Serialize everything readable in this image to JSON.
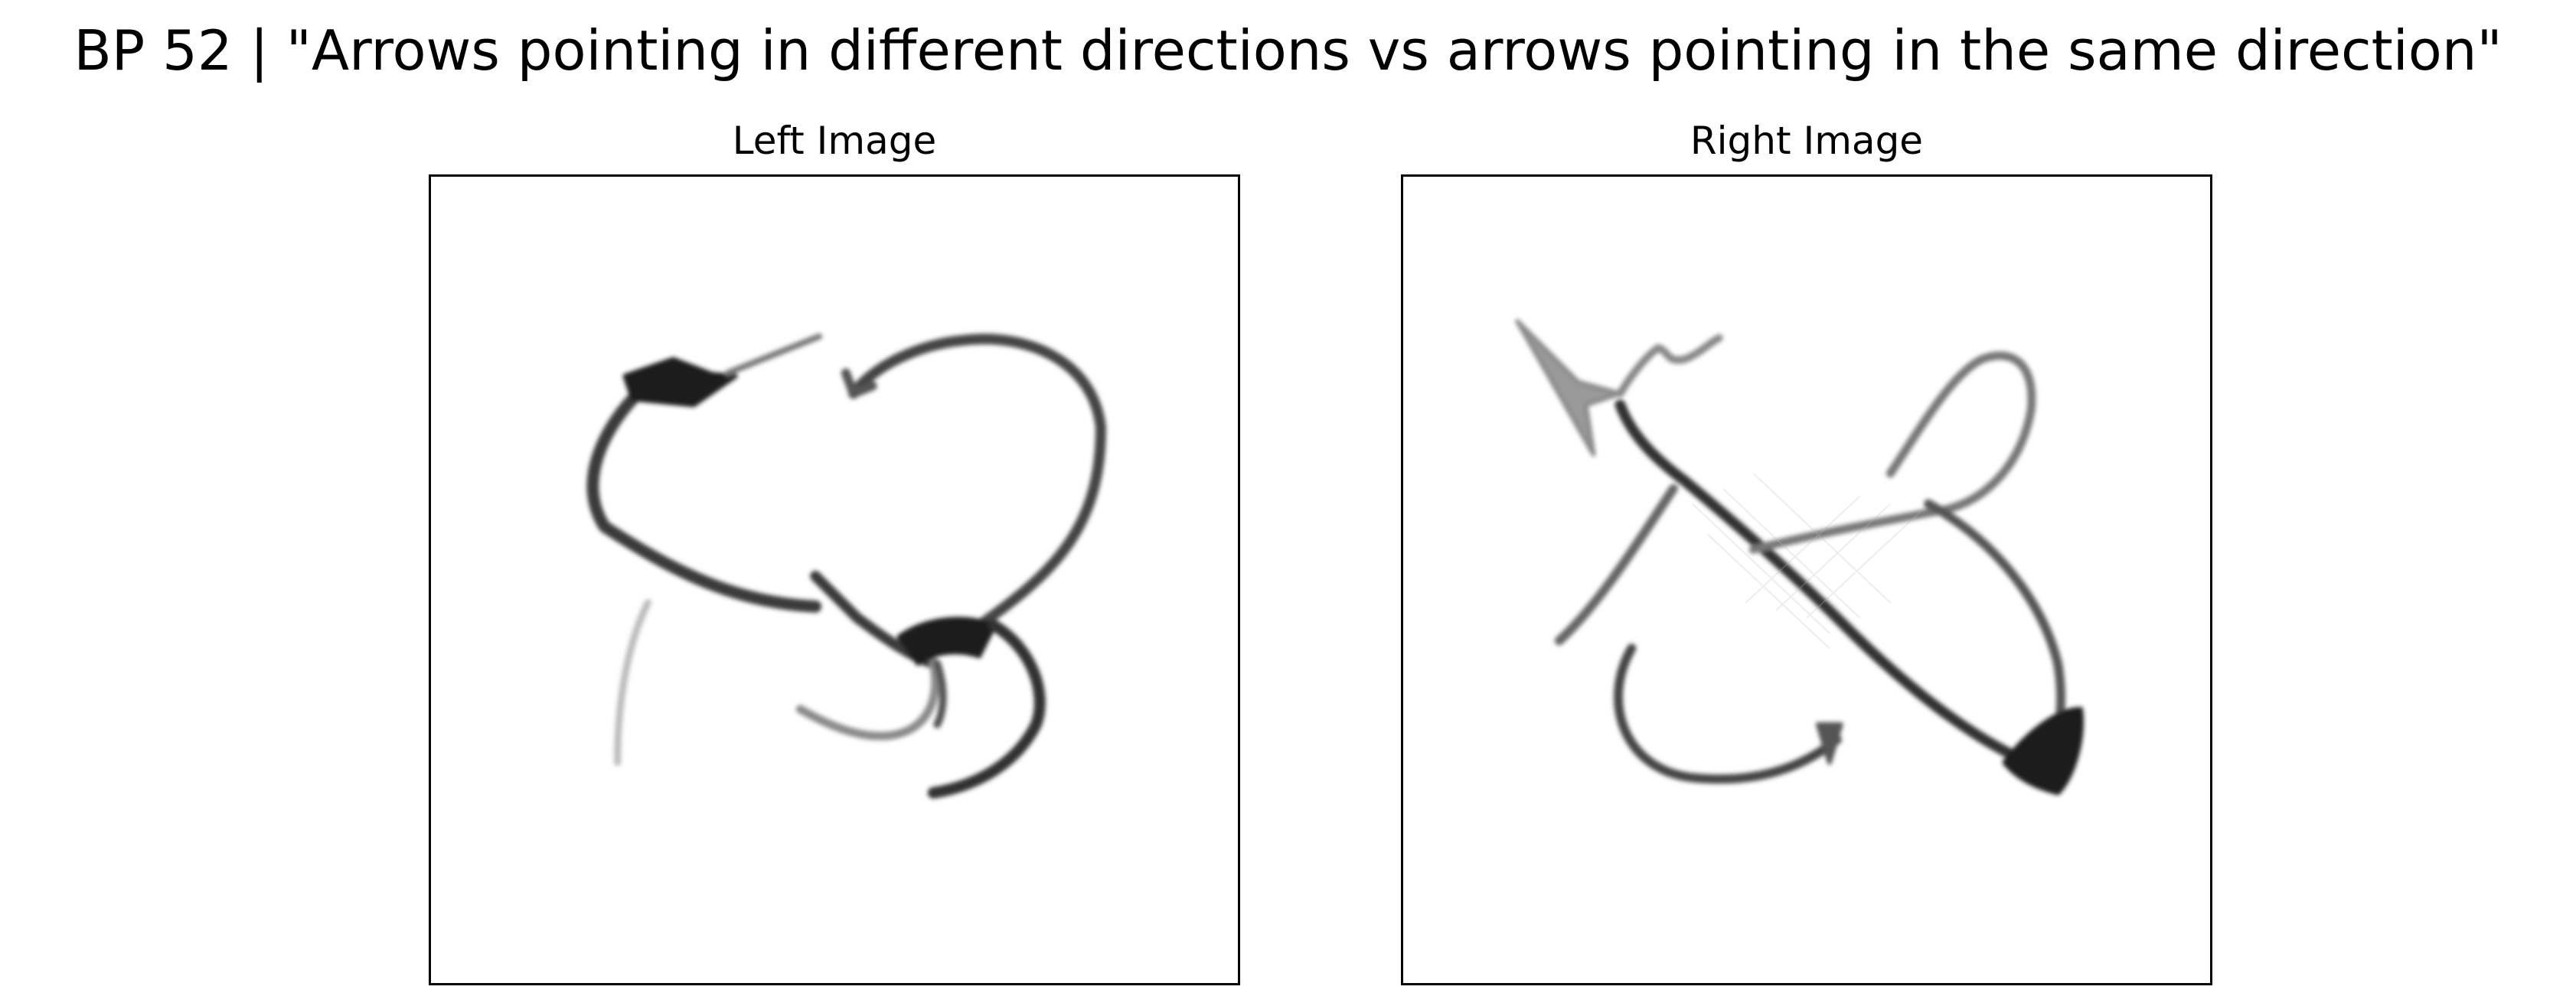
{
  "figure": {
    "title": "BP 52 | \"Arrows pointing in different directions vs arrows pointing in the same direction\""
  },
  "panels": {
    "left": {
      "title": "Left Image"
    },
    "right": {
      "title": "Right Image"
    }
  },
  "colors": {
    "background": "#ffffff",
    "frame": "#000000",
    "ink_dark": "#222222",
    "ink_mid": "#555555",
    "ink_light": "#aaaaaa"
  }
}
